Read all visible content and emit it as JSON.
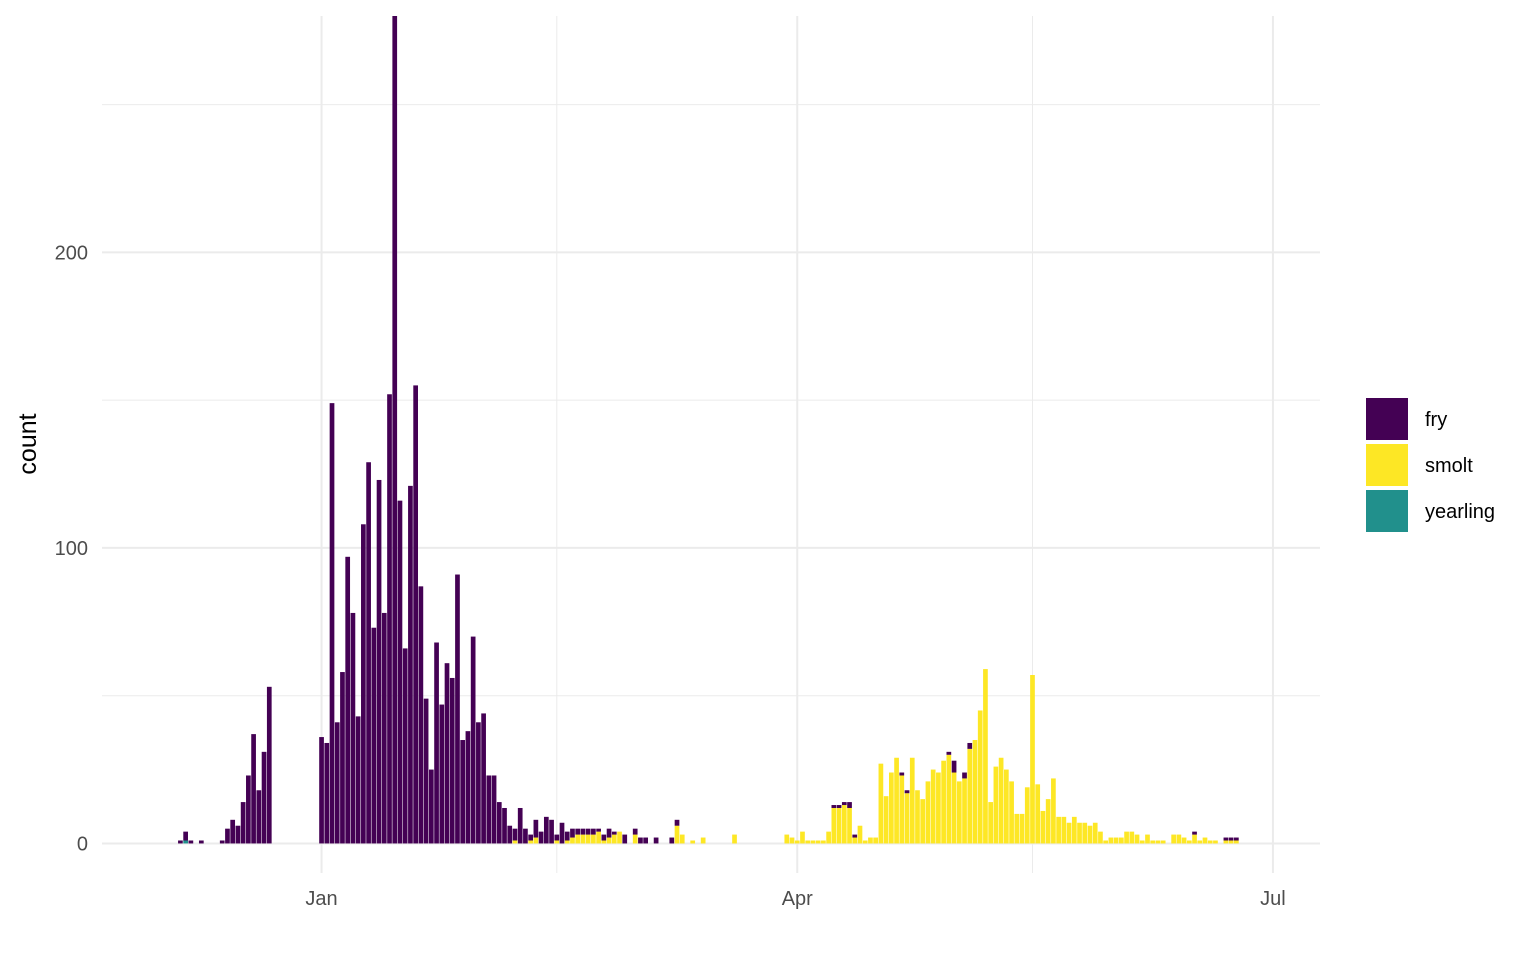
{
  "chart_data": {
    "type": "bar",
    "stacked": true,
    "title": "",
    "xlabel": "",
    "ylabel": "count",
    "x_scale": "date",
    "xlim": [
      "2019-11-20",
      "2020-07-10"
    ],
    "ylim": [
      -10,
      280
    ],
    "y_ticks": [
      0,
      100,
      200
    ],
    "x_ticks": [
      {
        "date": "2020-01-01",
        "label": "Jan"
      },
      {
        "date": "2020-04-01",
        "label": "Apr"
      },
      {
        "date": "2020-07-01",
        "label": "Jul"
      }
    ],
    "x_minor_ticks": [
      "2020-02-15",
      "2020-05-16"
    ],
    "grid": true,
    "legend_position": "right",
    "series": [
      {
        "name": "fry",
        "color": "#440154",
        "points": [
          [
            "2019-12-05",
            1
          ],
          [
            "2019-12-06",
            3
          ],
          [
            "2019-12-07",
            1
          ],
          [
            "2019-12-09",
            1
          ],
          [
            "2019-12-13",
            1
          ],
          [
            "2019-12-14",
            5
          ],
          [
            "2019-12-15",
            8
          ],
          [
            "2019-12-16",
            6
          ],
          [
            "2019-12-17",
            14
          ],
          [
            "2019-12-18",
            23
          ],
          [
            "2019-12-19",
            37
          ],
          [
            "2019-12-20",
            18
          ],
          [
            "2019-12-21",
            31
          ],
          [
            "2019-12-22",
            53
          ],
          [
            "2020-01-01",
            36
          ],
          [
            "2020-01-02",
            34
          ],
          [
            "2020-01-03",
            149
          ],
          [
            "2020-01-04",
            41
          ],
          [
            "2020-01-05",
            58
          ],
          [
            "2020-01-06",
            97
          ],
          [
            "2020-01-07",
            78
          ],
          [
            "2020-01-08",
            43
          ],
          [
            "2020-01-09",
            108
          ],
          [
            "2020-01-10",
            129
          ],
          [
            "2020-01-11",
            73
          ],
          [
            "2020-01-12",
            123
          ],
          [
            "2020-01-13",
            78
          ],
          [
            "2020-01-14",
            152
          ],
          [
            "2020-01-15",
            280
          ],
          [
            "2020-01-16",
            116
          ],
          [
            "2020-01-17",
            66
          ],
          [
            "2020-01-18",
            121
          ],
          [
            "2020-01-19",
            155
          ],
          [
            "2020-01-20",
            87
          ],
          [
            "2020-01-21",
            49
          ],
          [
            "2020-01-22",
            25
          ],
          [
            "2020-01-23",
            68
          ],
          [
            "2020-01-24",
            47
          ],
          [
            "2020-01-25",
            61
          ],
          [
            "2020-01-26",
            56
          ],
          [
            "2020-01-27",
            91
          ],
          [
            "2020-01-28",
            35
          ],
          [
            "2020-01-29",
            38
          ],
          [
            "2020-01-30",
            70
          ],
          [
            "2020-01-31",
            41
          ],
          [
            "2020-02-01",
            44
          ],
          [
            "2020-02-02",
            23
          ],
          [
            "2020-02-03",
            23
          ],
          [
            "2020-02-04",
            14
          ],
          [
            "2020-02-05",
            12
          ],
          [
            "2020-02-06",
            6
          ],
          [
            "2020-02-07",
            4
          ],
          [
            "2020-02-08",
            12
          ],
          [
            "2020-02-09",
            5
          ],
          [
            "2020-02-10",
            2
          ],
          [
            "2020-02-11",
            6
          ],
          [
            "2020-02-12",
            4
          ],
          [
            "2020-02-13",
            9
          ],
          [
            "2020-02-14",
            8
          ],
          [
            "2020-02-15",
            2
          ],
          [
            "2020-02-16",
            7
          ],
          [
            "2020-02-17",
            3
          ],
          [
            "2020-02-18",
            3
          ],
          [
            "2020-02-19",
            2
          ],
          [
            "2020-02-20",
            2
          ],
          [
            "2020-02-21",
            2
          ],
          [
            "2020-02-22",
            2
          ],
          [
            "2020-02-23",
            1
          ],
          [
            "2020-02-24",
            2
          ],
          [
            "2020-02-25",
            3
          ],
          [
            "2020-02-26",
            1
          ],
          [
            "2020-02-28",
            3
          ],
          [
            "2020-03-01",
            2
          ],
          [
            "2020-03-02",
            2
          ],
          [
            "2020-03-03",
            2
          ],
          [
            "2020-03-05",
            2
          ],
          [
            "2020-03-08",
            2
          ],
          [
            "2020-03-09",
            2
          ],
          [
            "2020-04-08",
            1
          ],
          [
            "2020-04-09",
            1
          ],
          [
            "2020-04-10",
            1
          ],
          [
            "2020-04-11",
            2
          ],
          [
            "2020-04-12",
            1
          ],
          [
            "2020-04-21",
            1
          ],
          [
            "2020-04-22",
            1
          ],
          [
            "2020-04-30",
            1
          ],
          [
            "2020-05-01",
            4
          ],
          [
            "2020-05-03",
            2
          ],
          [
            "2020-05-04",
            2
          ],
          [
            "2020-06-16",
            1
          ],
          [
            "2020-06-22",
            1
          ],
          [
            "2020-06-23",
            1
          ],
          [
            "2020-06-24",
            1
          ]
        ]
      },
      {
        "name": "smolt",
        "color": "#FDE725",
        "points": [
          [
            "2020-02-07",
            1
          ],
          [
            "2020-02-10",
            1
          ],
          [
            "2020-02-11",
            2
          ],
          [
            "2020-02-15",
            1
          ],
          [
            "2020-02-17",
            1
          ],
          [
            "2020-02-18",
            2
          ],
          [
            "2020-02-19",
            3
          ],
          [
            "2020-02-20",
            3
          ],
          [
            "2020-02-21",
            3
          ],
          [
            "2020-02-22",
            3
          ],
          [
            "2020-02-23",
            4
          ],
          [
            "2020-02-24",
            1
          ],
          [
            "2020-02-25",
            2
          ],
          [
            "2020-02-26",
            3
          ],
          [
            "2020-02-27",
            4
          ],
          [
            "2020-03-01",
            3
          ],
          [
            "2020-03-09",
            6
          ],
          [
            "2020-03-10",
            3
          ],
          [
            "2020-03-12",
            1
          ],
          [
            "2020-03-14",
            2
          ],
          [
            "2020-03-20",
            3
          ],
          [
            "2020-03-30",
            3
          ],
          [
            "2020-03-31",
            2
          ],
          [
            "2020-04-01",
            1
          ],
          [
            "2020-04-02",
            4
          ],
          [
            "2020-04-03",
            1
          ],
          [
            "2020-04-04",
            1
          ],
          [
            "2020-04-05",
            1
          ],
          [
            "2020-04-06",
            1
          ],
          [
            "2020-04-07",
            4
          ],
          [
            "2020-04-08",
            12
          ],
          [
            "2020-04-09",
            12
          ],
          [
            "2020-04-10",
            13
          ],
          [
            "2020-04-11",
            12
          ],
          [
            "2020-04-12",
            2
          ],
          [
            "2020-04-13",
            6
          ],
          [
            "2020-04-14",
            1
          ],
          [
            "2020-04-15",
            2
          ],
          [
            "2020-04-16",
            2
          ],
          [
            "2020-04-17",
            27
          ],
          [
            "2020-04-18",
            16
          ],
          [
            "2020-04-19",
            24
          ],
          [
            "2020-04-20",
            29
          ],
          [
            "2020-04-21",
            23
          ],
          [
            "2020-04-22",
            17
          ],
          [
            "2020-04-23",
            29
          ],
          [
            "2020-04-24",
            18
          ],
          [
            "2020-04-25",
            15
          ],
          [
            "2020-04-26",
            21
          ],
          [
            "2020-04-27",
            25
          ],
          [
            "2020-04-28",
            24
          ],
          [
            "2020-04-29",
            28
          ],
          [
            "2020-04-30",
            30
          ],
          [
            "2020-05-01",
            24
          ],
          [
            "2020-05-02",
            21
          ],
          [
            "2020-05-03",
            22
          ],
          [
            "2020-05-04",
            32
          ],
          [
            "2020-05-05",
            35
          ],
          [
            "2020-05-06",
            45
          ],
          [
            "2020-05-07",
            59
          ],
          [
            "2020-05-08",
            14
          ],
          [
            "2020-05-09",
            26
          ],
          [
            "2020-05-10",
            29
          ],
          [
            "2020-05-11",
            25
          ],
          [
            "2020-05-12",
            21
          ],
          [
            "2020-05-13",
            10
          ],
          [
            "2020-05-14",
            10
          ],
          [
            "2020-05-15",
            19
          ],
          [
            "2020-05-16",
            57
          ],
          [
            "2020-05-17",
            20
          ],
          [
            "2020-05-18",
            11
          ],
          [
            "2020-05-19",
            15
          ],
          [
            "2020-05-20",
            22
          ],
          [
            "2020-05-21",
            9
          ],
          [
            "2020-05-22",
            9
          ],
          [
            "2020-05-23",
            7
          ],
          [
            "2020-05-24",
            9
          ],
          [
            "2020-05-25",
            7
          ],
          [
            "2020-05-26",
            7
          ],
          [
            "2020-05-27",
            6
          ],
          [
            "2020-05-28",
            7
          ],
          [
            "2020-05-29",
            4
          ],
          [
            "2020-05-30",
            1
          ],
          [
            "2020-05-31",
            2
          ],
          [
            "2020-06-01",
            2
          ],
          [
            "2020-06-02",
            2
          ],
          [
            "2020-06-03",
            4
          ],
          [
            "2020-06-04",
            4
          ],
          [
            "2020-06-05",
            3
          ],
          [
            "2020-06-06",
            1
          ],
          [
            "2020-06-07",
            3
          ],
          [
            "2020-06-08",
            1
          ],
          [
            "2020-06-09",
            1
          ],
          [
            "2020-06-10",
            1
          ],
          [
            "2020-06-12",
            3
          ],
          [
            "2020-06-13",
            3
          ],
          [
            "2020-06-14",
            2
          ],
          [
            "2020-06-15",
            1
          ],
          [
            "2020-06-16",
            3
          ],
          [
            "2020-06-17",
            1
          ],
          [
            "2020-06-18",
            2
          ],
          [
            "2020-06-19",
            1
          ],
          [
            "2020-06-20",
            1
          ],
          [
            "2020-06-22",
            1
          ],
          [
            "2020-06-23",
            1
          ],
          [
            "2020-06-24",
            1
          ]
        ]
      },
      {
        "name": "yearling",
        "color": "#21908C",
        "points": [
          [
            "2019-12-06",
            1
          ]
        ]
      }
    ]
  }
}
